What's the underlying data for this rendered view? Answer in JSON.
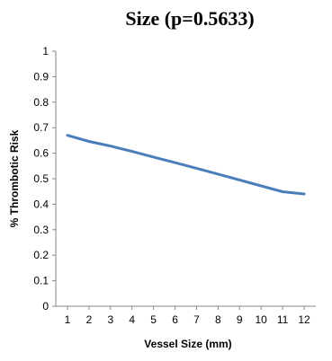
{
  "chart_data": {
    "type": "line",
    "title": "Size (p=0.5633)",
    "xlabel": "Vessel Size (mm)",
    "ylabel": "% Thrombotic Risk",
    "x": [
      1,
      2,
      3,
      4,
      5,
      6,
      7,
      8,
      9,
      10,
      11,
      12
    ],
    "series": [
      {
        "values": [
          0.67,
          0.646,
          0.628,
          0.607,
          0.585,
          0.563,
          0.541,
          0.518,
          0.495,
          0.472,
          0.449,
          0.44
        ]
      }
    ],
    "xlim": [
      1,
      12
    ],
    "ylim": [
      0,
      1
    ],
    "x_ticks": [
      1,
      2,
      3,
      4,
      5,
      6,
      7,
      8,
      9,
      10,
      11,
      12
    ],
    "y_ticks": [
      0,
      0.1,
      0.2,
      0.3,
      0.4,
      0.5,
      0.6,
      0.7,
      0.8,
      0.9,
      1
    ],
    "y_tick_labels": [
      "0",
      "0.1",
      "0.2",
      "0.3",
      "0.4",
      "0.5",
      "0.6",
      "0.7",
      "0.8",
      "0.9",
      "1"
    ],
    "grid": false,
    "legend": "none",
    "line_color": "#4a7ebb"
  }
}
